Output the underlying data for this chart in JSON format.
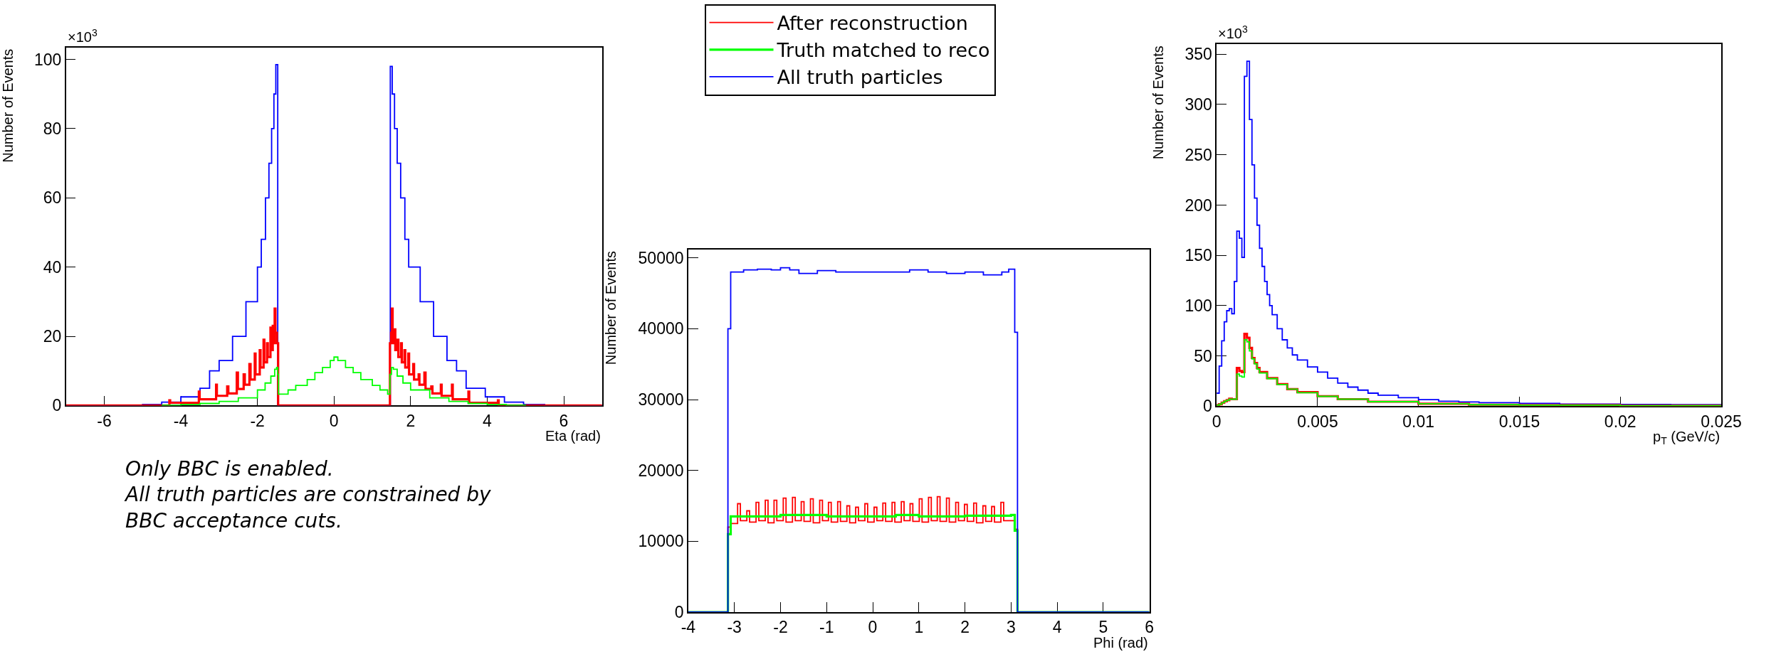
{
  "chart_data": [
    {
      "type": "step",
      "xlabel": "Eta (rad)",
      "ylabel": "Number of Events",
      "xlim": [
        -7,
        7
      ],
      "xticks": [
        -6,
        -4,
        -2,
        0,
        2,
        4,
        6
      ],
      "ylim": [
        0,
        103.4
      ],
      "yticks": [
        0,
        20,
        40,
        60,
        80,
        100
      ],
      "grid": false,
      "annotations": [
        "×10$^{3}$",
        "Only BBC is enabled.\nAll truth particles are constrained by\nBBC acceptance cuts."
      ],
      "series": [
        {
          "color": "#0000ff",
          "x": [
            -7,
            -5,
            -4.5,
            -4,
            -3.5,
            -3.25,
            -3,
            -2.65,
            -2.3,
            -2,
            -1.9,
            -1.79,
            -1.7,
            -1.63,
            -1.57,
            -1.52,
            -1.47,
            1.47,
            1.52,
            1.58,
            1.65,
            1.74,
            1.85,
            1.95,
            2.25,
            2.6,
            2.95,
            3.2,
            3.45,
            3.95,
            4.45,
            4.95,
            5.5,
            7
          ],
          "values": [
            0,
            0.3,
            1,
            2.5,
            5,
            10,
            13,
            20,
            30,
            40,
            48,
            60,
            70,
            80,
            90,
            98.5,
            0,
            98,
            90,
            80,
            70,
            60,
            48,
            40,
            30,
            20,
            13,
            10,
            5,
            2.5,
            1,
            0.3,
            0,
            0
          ]
        },
        {
          "color": "#ff0000",
          "x": [
            -7,
            -4.3,
            -4.28,
            -3.53,
            -3.51,
            -3.08,
            -3.06,
            -2.79,
            -2.76,
            -2.54,
            -2.51,
            -2.36,
            -2.33,
            -2.21,
            -2.18,
            -2.07,
            -2.05,
            -1.94,
            -1.92,
            -1.84,
            -1.82,
            -1.75,
            -1.73,
            -1.66,
            -1.64,
            -1.6,
            -1.58,
            -1.55,
            -1.53,
            -1.49,
            -1.46,
            1.46,
            1.49,
            1.51,
            1.53,
            1.58,
            1.6,
            1.66,
            1.68,
            1.75,
            1.77,
            1.84,
            1.86,
            1.94,
            1.96,
            2.07,
            2.09,
            2.21,
            2.23,
            2.36,
            2.39,
            2.54,
            2.57,
            2.79,
            2.81,
            3.08,
            3.1,
            3.51,
            3.53,
            4.28,
            4.3,
            7
          ],
          "values": [
            0,
            1.5,
            0.8,
            4,
            1.8,
            6,
            2.8,
            5.5,
            3.5,
            9.5,
            4.8,
            9,
            6,
            12,
            7.5,
            15,
            9,
            16,
            11,
            19,
            12.5,
            18,
            14,
            22.5,
            16,
            23,
            18,
            28,
            21,
            18,
            0,
            18,
            21,
            28,
            18,
            22,
            16,
            19,
            14,
            18,
            12.5,
            16,
            11,
            15,
            9,
            12,
            7.5,
            9,
            6,
            9.5,
            4.8,
            5.5,
            3.5,
            6,
            2.8,
            6,
            1.8,
            4,
            0.8,
            1.5,
            0,
            0
          ]
        },
        {
          "color": "#00ff00",
          "x": [
            -4.5,
            -4,
            -3.5,
            -3,
            -2.5,
            -2,
            -1.8,
            -1.65,
            -1.55,
            -1.5,
            -1.47,
            -1.45,
            -1.2,
            -1,
            -0.7,
            -0.5,
            -0.3,
            -0.1,
            0,
            0.1,
            0.3,
            0.5,
            0.7,
            1,
            1.2,
            1.4,
            1.46,
            1.5,
            1.55,
            1.65,
            1.8,
            2,
            2.5,
            3,
            3.5,
            4,
            4.5,
            5
          ],
          "values": [
            0.1,
            0.3,
            0.6,
            1.2,
            2.2,
            4.5,
            6.5,
            8.5,
            10.5,
            11,
            9,
            3.3,
            4.5,
            5.8,
            7.5,
            9.5,
            11,
            13,
            14,
            13,
            11,
            9.5,
            7.5,
            5.8,
            4.5,
            3.3,
            9,
            11,
            10.5,
            8.5,
            6.5,
            4.5,
            2.2,
            1.2,
            0.6,
            0.3,
            0.1,
            0
          ]
        }
      ]
    },
    {
      "type": "step",
      "xlabel": "Phi (rad)",
      "ylabel": "Number of Events",
      "xlim": [
        -4,
        6
      ],
      "xticks": [
        -4,
        -3,
        -2,
        -1,
        0,
        1,
        2,
        3,
        4,
        5,
        6
      ],
      "ylim": [
        0,
        51200
      ],
      "yticks": [
        0,
        10000,
        20000,
        30000,
        40000,
        50000
      ],
      "grid": false,
      "legend": "top",
      "series": [
        {
          "name": "After reconstruction",
          "color": "#ff0000",
          "x": [
            -4,
            -3.14,
            -3.08,
            -2.93,
            -2.87,
            -2.73,
            -2.67,
            -2.53,
            -2.47,
            -2.33,
            -2.27,
            -2.14,
            -2.08,
            -1.94,
            -1.88,
            -1.74,
            -1.68,
            -1.55,
            -1.49,
            -1.35,
            -1.29,
            -1.15,
            -1.09,
            -0.96,
            -0.9,
            -0.76,
            -0.7,
            -0.56,
            -0.5,
            -0.37,
            -0.31,
            -0.17,
            -0.11,
            0.03,
            0.09,
            0.22,
            0.28,
            0.42,
            0.48,
            0.62,
            0.68,
            0.81,
            0.87,
            1.01,
            1.07,
            1.21,
            1.27,
            1.4,
            1.46,
            1.6,
            1.66,
            1.8,
            1.86,
            1.99,
            2.05,
            2.19,
            2.25,
            2.39,
            2.45,
            2.58,
            2.64,
            2.78,
            2.84,
            3.08,
            3.14,
            6
          ],
          "values": [
            0,
            12000,
            12500,
            15300,
            12900,
            14300,
            12700,
            15500,
            12900,
            15800,
            12600,
            15800,
            12900,
            16100,
            12700,
            16200,
            12900,
            15600,
            12800,
            16000,
            12600,
            15800,
            12900,
            15500,
            12700,
            15600,
            12800,
            15000,
            12600,
            14800,
            12900,
            15300,
            12700,
            14800,
            12900,
            15400,
            12800,
            15500,
            12700,
            15600,
            12900,
            15300,
            12800,
            16000,
            12700,
            16200,
            12900,
            16300,
            12800,
            16100,
            12700,
            15500,
            12900,
            15200,
            12800,
            15400,
            12600,
            15000,
            12800,
            14900,
            12700,
            15500,
            12900,
            11700,
            0,
            0
          ]
        },
        {
          "name": "Truth matched to reco",
          "color": "#00ff00",
          "x": [
            -4,
            -3.14,
            -3.08,
            -2.5,
            -2,
            -1,
            0,
            0.5,
            1,
            2,
            3,
            3.08,
            3.14,
            6
          ],
          "values": [
            0,
            11000,
            13500,
            13500,
            13700,
            13500,
            13500,
            13700,
            13500,
            13600,
            13700,
            11500,
            0,
            0
          ]
        },
        {
          "name": "All truth particles",
          "color": "#0000ff",
          "x": [
            -4,
            -3.14,
            -3.08,
            -2.8,
            -2.5,
            -2.2,
            -2,
            -1.8,
            -1.6,
            -1.2,
            -0.8,
            -0.4,
            0,
            0.5,
            0.8,
            1.2,
            1.6,
            2,
            2.4,
            2.8,
            2.95,
            3.08,
            3.14,
            6
          ],
          "values": [
            0,
            40000,
            48000,
            48300,
            48400,
            48300,
            48600,
            48300,
            47800,
            48200,
            48000,
            48000,
            48000,
            48000,
            48300,
            48000,
            47800,
            48000,
            47600,
            48000,
            48400,
            39500,
            0,
            0
          ]
        }
      ]
    },
    {
      "type": "step",
      "xlabel": "p$_{T}$ (GeV/c)",
      "ylabel": "Number of Events",
      "xlim": [
        0,
        0.025
      ],
      "xticks": [
        0,
        0.005,
        0.01,
        0.015,
        0.02,
        0.025
      ],
      "ylim": [
        0,
        360
      ],
      "yticks": [
        0,
        50,
        100,
        150,
        200,
        250,
        300,
        350
      ],
      "grid": false,
      "annotations": [
        "×10$^{3}$"
      ],
      "series": [
        {
          "color": "#0000ff",
          "x": [
            0,
            0.000125,
            0.00025,
            0.000375,
            0.0005,
            0.000625,
            0.00075,
            0.000875,
            0.001,
            0.001125,
            0.00125,
            0.001375,
            0.0015,
            0.001625,
            0.00175,
            0.001875,
            0.002,
            0.002125,
            0.00225,
            0.002375,
            0.0025,
            0.002625,
            0.00275,
            0.003,
            0.00325,
            0.0035,
            0.00375,
            0.004,
            0.0045,
            0.005,
            0.0055,
            0.006,
            0.0065,
            0.007,
            0.0075,
            0.008,
            0.009,
            0.01,
            0.011,
            0.012,
            0.013,
            0.015,
            0.017,
            0.02,
            0.0225,
            0.025
          ],
          "values": [
            13,
            40,
            65,
            84,
            95,
            97,
            92,
            124,
            174,
            167,
            148,
            328,
            343,
            285,
            240,
            207,
            180,
            157,
            139,
            124,
            111,
            100,
            91,
            77,
            66,
            58,
            51,
            46,
            39,
            34,
            28,
            23,
            19,
            16,
            13,
            11,
            8.5,
            6.5,
            5,
            4.2,
            3.5,
            2.8,
            2.2,
            1.8,
            1.5,
            1.2
          ]
        },
        {
          "color": "#ff0000",
          "x": [
            0,
            0.000125,
            0.00025,
            0.000375,
            0.0005,
            0.000625,
            0.00075,
            0.000875,
            0.001,
            0.001125,
            0.00125,
            0.001375,
            0.0015,
            0.001625,
            0.00175,
            0.001875,
            0.002,
            0.002125,
            0.0025,
            0.003,
            0.0035,
            0.004,
            0.005,
            0.006,
            0.0075,
            0.01,
            0.0125,
            0.015,
            0.02,
            0.025
          ],
          "values": [
            1,
            2,
            3.5,
            5,
            6,
            7.5,
            7,
            7,
            38,
            35,
            34,
            72,
            68,
            58,
            48,
            43,
            38,
            34,
            28,
            22,
            17,
            14,
            10,
            7,
            4.5,
            2.5,
            1.5,
            1,
            0.5,
            0.3
          ]
        },
        {
          "color": "#00ff00",
          "x": [
            0,
            0.000125,
            0.00025,
            0.000375,
            0.0005,
            0.000625,
            0.00075,
            0.000875,
            0.001,
            0.001125,
            0.00125,
            0.001375,
            0.0015,
            0.001625,
            0.00175,
            0.001875,
            0.002,
            0.002125,
            0.0025,
            0.003,
            0.0035,
            0.004,
            0.005,
            0.006,
            0.0075,
            0.01,
            0.0125,
            0.015,
            0.02,
            0.025
          ],
          "values": [
            1,
            2,
            3.5,
            5,
            6,
            7,
            7,
            7,
            32,
            30,
            29,
            66,
            64,
            55,
            47,
            42,
            37,
            33,
            27.5,
            21.5,
            17,
            13.5,
            9.8,
            7,
            4.5,
            2.5,
            1.5,
            1,
            0.5,
            0.3
          ]
        }
      ]
    }
  ]
}
